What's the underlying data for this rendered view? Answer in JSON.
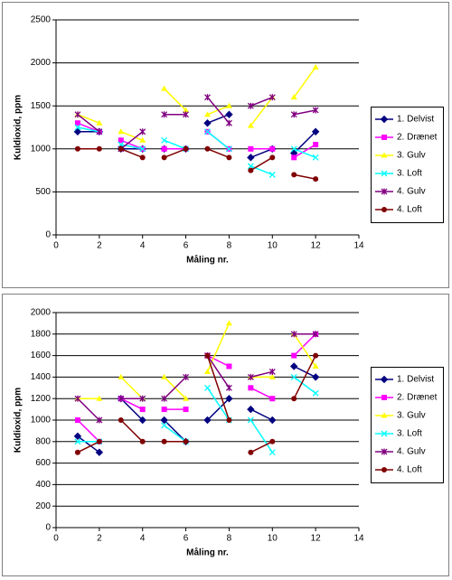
{
  "chart_data": [
    {
      "type": "line",
      "y_label": "Kuldioxid, ppm",
      "x_label": "Måling nr.",
      "xlim": [
        0,
        14
      ],
      "xticks": [
        0,
        2,
        4,
        6,
        8,
        10,
        12,
        14
      ],
      "ylim": [
        0,
        2500
      ],
      "yticks": [
        0,
        500,
        1000,
        1500,
        2000,
        2500
      ],
      "grid": true,
      "legend": "right",
      "x": [
        1,
        2,
        null,
        3,
        4,
        null,
        5,
        6,
        null,
        7,
        8,
        null,
        9,
        10,
        null,
        11,
        12
      ],
      "series": [
        {
          "name": "1. Delvist",
          "color": "#000080",
          "marker": "diamond",
          "values": [
            1200,
            1200,
            null,
            1000,
            1000,
            null,
            1000,
            1000,
            null,
            1300,
            1400,
            null,
            900,
            1000,
            null,
            950,
            1200
          ]
        },
        {
          "name": "2. Drænet",
          "color": "#ff00ff",
          "marker": "square",
          "values": [
            1300,
            1200,
            null,
            1100,
            1000,
            null,
            1000,
            1000,
            null,
            1200,
            1000,
            null,
            1000,
            1000,
            null,
            900,
            1050
          ]
        },
        {
          "name": "3. Gulv",
          "color": "#ffff00",
          "marker": "triangle",
          "values": [
            1400,
            1300,
            null,
            1200,
            1100,
            null,
            1700,
            1450,
            null,
            1400,
            1500,
            null,
            1270,
            1600,
            null,
            1600,
            1950
          ]
        },
        {
          "name": "3. Loft",
          "color": "#00ffff",
          "marker": "x",
          "values": [
            1250,
            1200,
            null,
            1050,
            1000,
            null,
            1100,
            1000,
            null,
            1200,
            1000,
            null,
            800,
            700,
            null,
            1000,
            900
          ]
        },
        {
          "name": "4. Gulv",
          "color": "#800080",
          "marker": "star",
          "values": [
            1400,
            1200,
            null,
            1000,
            1200,
            null,
            1400,
            1400,
            null,
            1600,
            1300,
            null,
            1500,
            1600,
            null,
            1400,
            1450
          ]
        },
        {
          "name": "4. Loft",
          "color": "#800000",
          "marker": "circle",
          "values": [
            1000,
            1000,
            null,
            1000,
            900,
            null,
            900,
            1000,
            null,
            1000,
            900,
            null,
            750,
            900,
            null,
            700,
            650
          ]
        }
      ]
    },
    {
      "type": "line",
      "y_label": "Kuldioxid, ppm",
      "x_label": "Måling nr.",
      "xlim": [
        0,
        14
      ],
      "xticks": [
        0,
        2,
        4,
        6,
        8,
        10,
        12,
        14
      ],
      "ylim": [
        0,
        2000
      ],
      "yticks": [
        0,
        200,
        400,
        600,
        800,
        1000,
        1200,
        1400,
        1600,
        1800,
        2000
      ],
      "grid": true,
      "legend": "right",
      "x": [
        1,
        2,
        null,
        3,
        4,
        null,
        5,
        6,
        null,
        7,
        8,
        null,
        9,
        10,
        null,
        11,
        12
      ],
      "series": [
        {
          "name": "1. Delvist",
          "color": "#000080",
          "marker": "diamond",
          "values": [
            850,
            700,
            null,
            1200,
            1000,
            null,
            1000,
            800,
            null,
            1000,
            1200,
            null,
            1100,
            1000,
            null,
            1500,
            1400
          ]
        },
        {
          "name": "2. Drænet",
          "color": "#ff00ff",
          "marker": "square",
          "values": [
            1000,
            800,
            null,
            1200,
            1100,
            null,
            1100,
            1100,
            null,
            1600,
            1500,
            null,
            1300,
            1200,
            null,
            1600,
            1800
          ]
        },
        {
          "name": "3. Gulv",
          "color": "#ffff00",
          "marker": "triangle",
          "values": [
            1200,
            1200,
            null,
            1400,
            1200,
            null,
            1400,
            1200,
            null,
            1450,
            1900,
            null,
            1400,
            1400,
            null,
            1800,
            1500
          ]
        },
        {
          "name": "3. Loft",
          "color": "#00ffff",
          "marker": "x",
          "values": [
            800,
            800,
            null,
            1200,
            1200,
            null,
            950,
            800,
            null,
            1300,
            1000,
            null,
            1000,
            700,
            null,
            1400,
            1250
          ]
        },
        {
          "name": "4. Gulv",
          "color": "#800080",
          "marker": "star",
          "values": [
            1200,
            1000,
            null,
            1200,
            1200,
            null,
            1200,
            1400,
            null,
            1600,
            1300,
            null,
            1400,
            1450,
            null,
            1800,
            1800
          ]
        },
        {
          "name": "4. Loft",
          "color": "#800000",
          "marker": "circle",
          "values": [
            700,
            800,
            null,
            1000,
            800,
            null,
            800,
            800,
            null,
            1600,
            1000,
            null,
            700,
            800,
            null,
            1200,
            1600
          ]
        }
      ]
    }
  ]
}
